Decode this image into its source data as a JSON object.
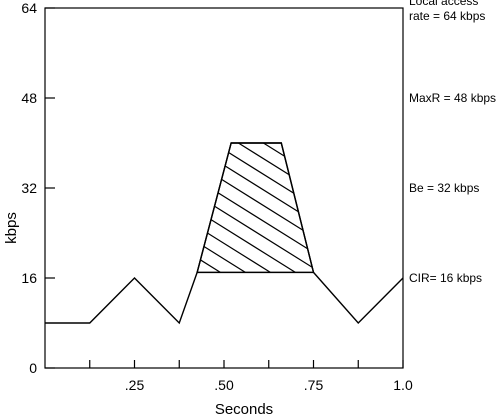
{
  "chart_data": {
    "type": "line",
    "xlabel": "Seconds",
    "ylabel": "kbps",
    "xlim": [
      0,
      1.0
    ],
    "ylim": [
      0,
      64
    ],
    "y_ticks": [
      {
        "value": 0,
        "label": "0"
      },
      {
        "value": 16,
        "label": "16"
      },
      {
        "value": 32,
        "label": "32"
      },
      {
        "value": 48,
        "label": "48"
      },
      {
        "value": 64,
        "label": "64"
      }
    ],
    "x_ticks": [
      {
        "value": 0.125,
        "label": ""
      },
      {
        "value": 0.25,
        "label": ".25"
      },
      {
        "value": 0.375,
        "label": ""
      },
      {
        "value": 0.5,
        "label": ".50"
      },
      {
        "value": 0.625,
        "label": ""
      },
      {
        "value": 0.75,
        "label": ".75"
      },
      {
        "value": 0.875,
        "label": ""
      },
      {
        "value": 1.0,
        "label": "1.0"
      }
    ],
    "series": [
      {
        "x": [
          0,
          0.125,
          0.25,
          0.375,
          0.425,
          0.52,
          0.66,
          0.75,
          0.875,
          1.0
        ],
        "y": [
          8,
          8,
          16,
          8,
          17,
          40,
          40,
          17,
          8,
          16
        ]
      }
    ],
    "hatched_region": {
      "x": [
        0.425,
        0.52,
        0.66,
        0.75
      ],
      "y": [
        17,
        40,
        40,
        17
      ]
    },
    "annotations": [
      {
        "lines": [
          "Local access",
          "rate = 64 kbps"
        ],
        "y": 64
      },
      {
        "lines": [
          "MaxR = 48 kbps"
        ],
        "y": 48
      },
      {
        "lines": [
          "Be = 32 kbps"
        ],
        "y": 32
      },
      {
        "lines": [
          "CIR= 16 kbps"
        ],
        "y": 16
      }
    ]
  }
}
